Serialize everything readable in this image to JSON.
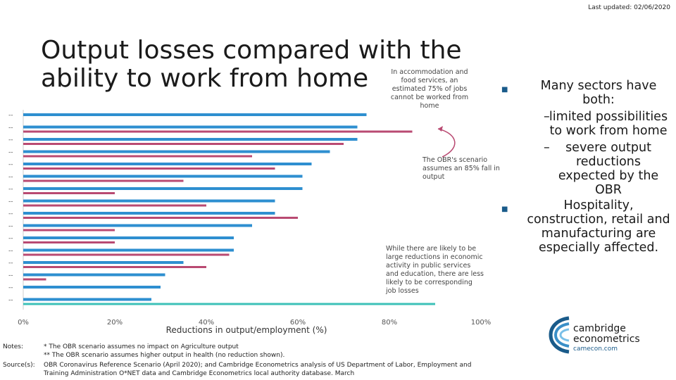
{
  "updated": "Last updated: 02/06/2020",
  "title": "Output losses compared with the ability to work from home",
  "callouts": {
    "accommodation": "In accommodation and food services, an estimated 75% of jobs cannot be worked from home",
    "obr": "The OBR's scenario assumes an 85% fall in output",
    "public": "While there are likely to be large reductions in economic activity in public services and education, there are less likely to be corresponding job losses"
  },
  "bullets": [
    {
      "text": "Many sectors have both:",
      "subs": [
        "limited possibilities to work from home",
        "severe output reductions expected by the OBR"
      ]
    },
    {
      "text": "Hospitality, construction, retail and manufacturing are especially affected.",
      "subs": []
    }
  ],
  "logo": {
    "name_line1": "cambridge",
    "name_line2": "econometrics",
    "web": "camecon.com"
  },
  "notes_label": "Notes:",
  "notes": [
    "* The OBR scenario assumes no impact on Agriculture output",
    "** The OBR scenario assumes higher output in health (no reduction shown)."
  ],
  "sources_label": "Source(s):",
  "sources": "OBR Coronavirus Reference Scenario (April 2020); and Cambridge Econometrics analysis of US Department of Labor, Employment and Training Administration O*NET data and Cambridge Econometrics local authority database. March",
  "colors": {
    "jobs": "#2e8fd0",
    "output": "#b94a72",
    "highlight": "#3cc0b8"
  },
  "chart_data": {
    "type": "bar",
    "orientation": "horizontal",
    "title": "",
    "xlabel": "Reductions in output/employment (%)",
    "ylabel": "",
    "xlim": [
      0,
      100
    ],
    "xticks": [
      "0%",
      "20%",
      "40%",
      "60%",
      "80%",
      "100%"
    ],
    "categories": [
      "--",
      "--",
      "--",
      "--",
      "--",
      "--",
      "--",
      "--",
      "--",
      "--",
      "--",
      "--",
      "--",
      "--",
      "--",
      "--"
    ],
    "series": [
      {
        "values": [
          75,
          73,
          73,
          67,
          63,
          61,
          61,
          55,
          55,
          50,
          46,
          46,
          35,
          31,
          30,
          28
        ]
      },
      {
        "values": [
          null,
          85,
          70,
          50,
          55,
          35,
          20,
          40,
          60,
          20,
          20,
          45,
          40,
          5,
          null,
          90
        ]
      }
    ],
    "grid": false,
    "legend": "none"
  }
}
